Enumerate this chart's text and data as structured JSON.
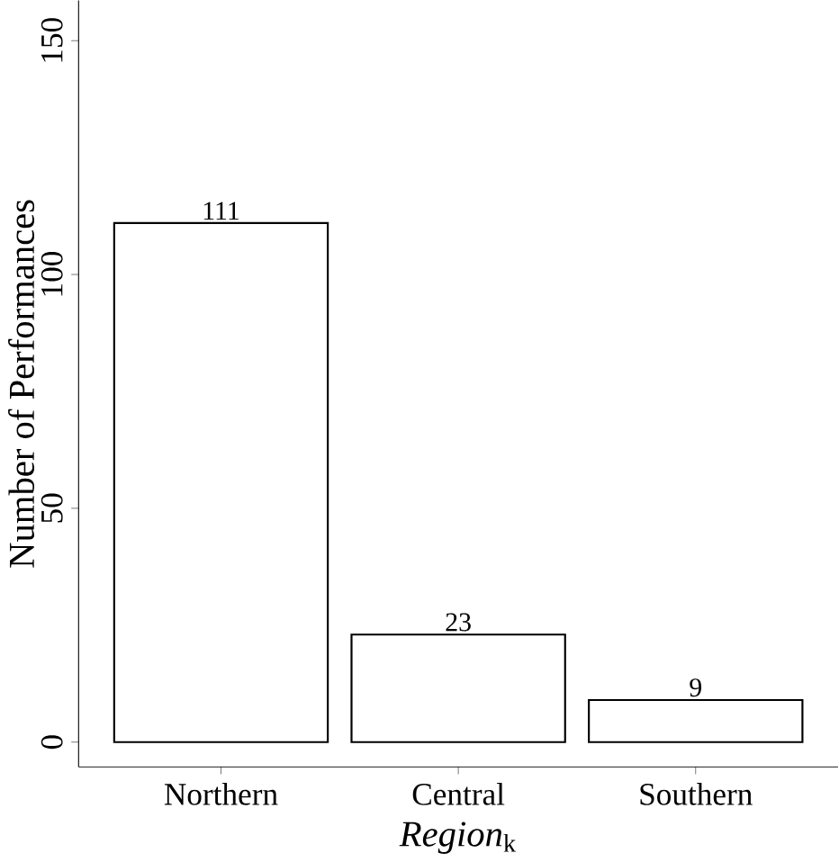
{
  "chart_data": {
    "type": "bar",
    "xlabel": "*Region*$_{k}$",
    "ylabel": "Number of Performances",
    "categories": [
      "Northern",
      "Central",
      "Southern"
    ],
    "values": [
      111,
      23,
      9
    ],
    "color": "#ffffff",
    "ylim": [
      -5.3,
      158.6
    ],
    "yticks": [
      0,
      50,
      100,
      150
    ],
    "data_labels": true,
    "grid": false
  }
}
